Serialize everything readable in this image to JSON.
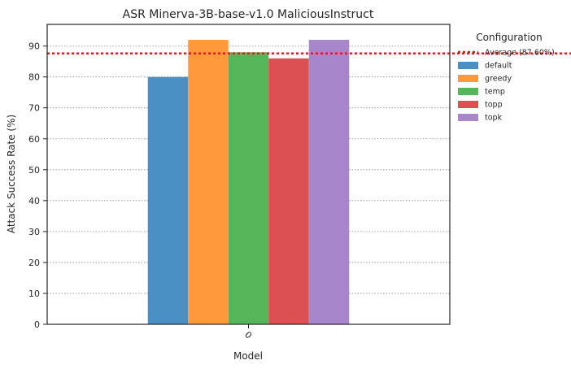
{
  "chart_data": {
    "type": "bar",
    "title": "ASR Minerva-3B-base-v1.0 MaliciousInstruct",
    "xlabel": "Model",
    "ylabel": "Attack Success Rate (%)",
    "categories": [
      "0"
    ],
    "ylim": [
      0,
      97
    ],
    "yticks": [
      0,
      10,
      20,
      30,
      40,
      50,
      60,
      70,
      80,
      90
    ],
    "grid": "horizontal dotted",
    "legend_title": "Configuration",
    "legend_position": "outside right",
    "average": {
      "label": "Average (87.60%)",
      "value": 87.6,
      "color": "#e31a1c"
    },
    "series": [
      {
        "name": "default",
        "values": [
          80
        ],
        "color": "#4a90c4"
      },
      {
        "name": "greedy",
        "values": [
          92
        ],
        "color": "#ff9a3c"
      },
      {
        "name": "temp",
        "values": [
          88
        ],
        "color": "#56b75a"
      },
      {
        "name": "topp",
        "values": [
          86
        ],
        "color": "#dc5052"
      },
      {
        "name": "topk",
        "values": [
          92
        ],
        "color": "#a886cb"
      }
    ]
  }
}
